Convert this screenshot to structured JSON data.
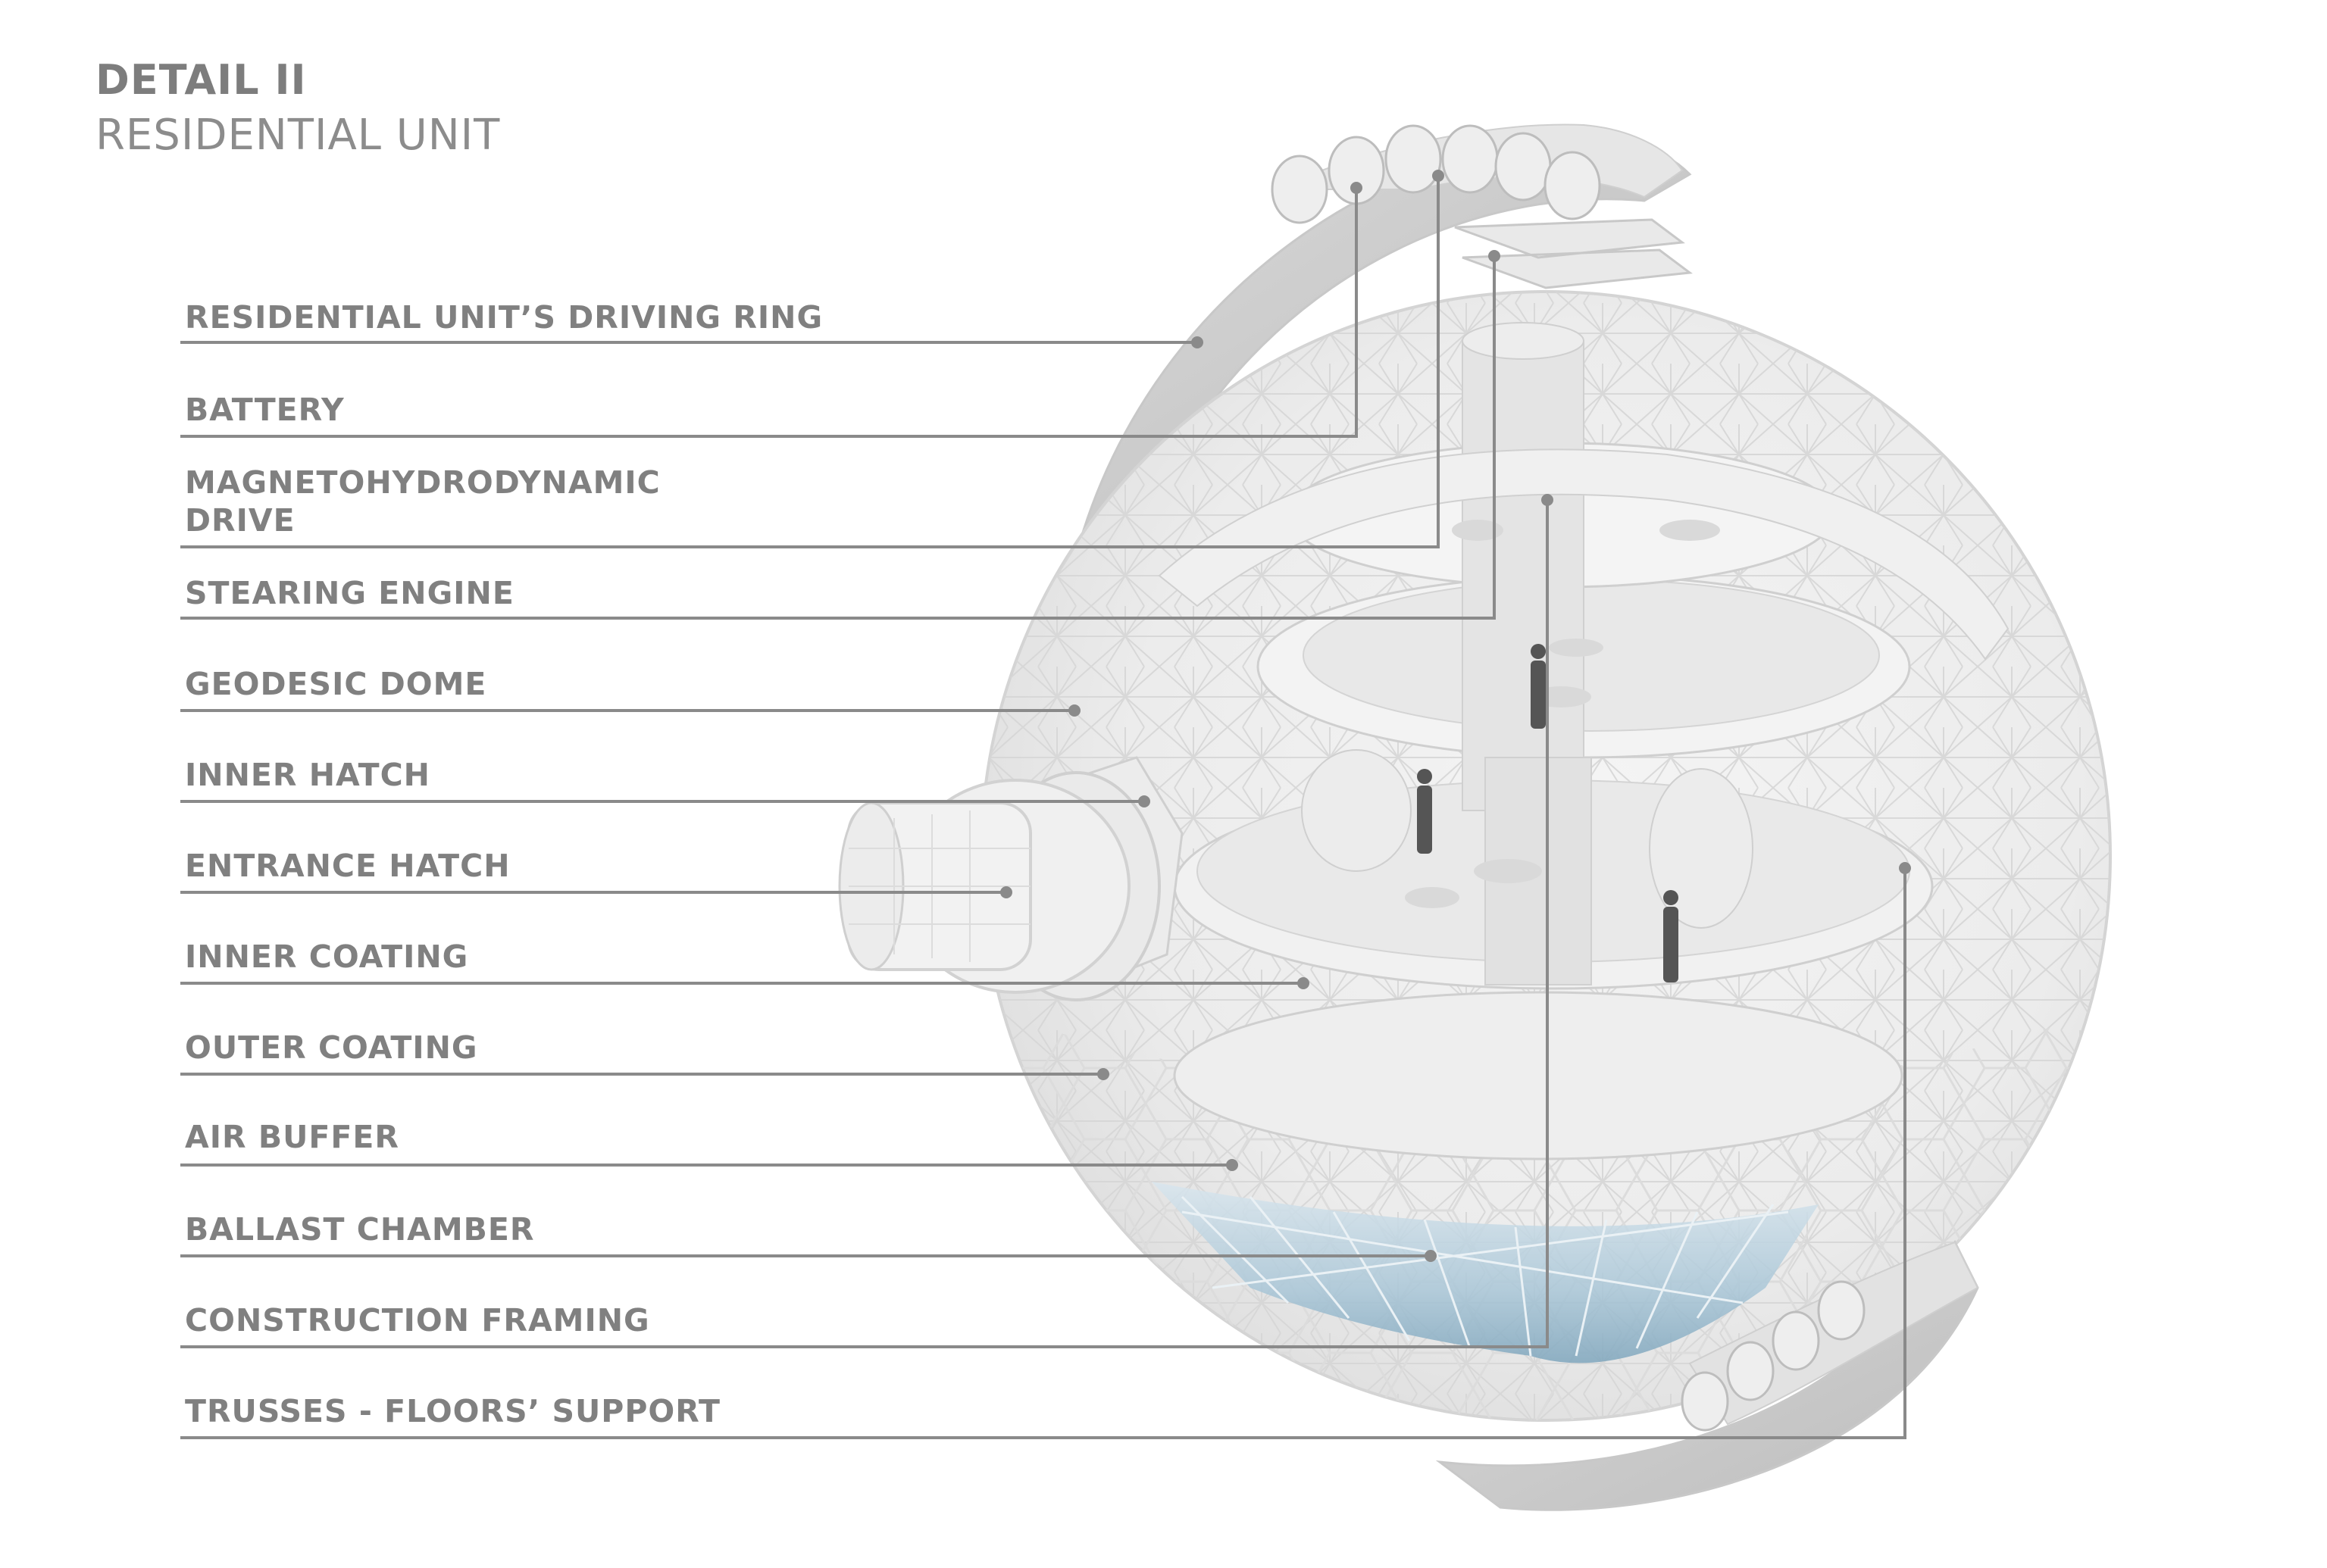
{
  "header": {
    "title": "DETAIL II",
    "subtitle": "RESIDENTIAL UNIT"
  },
  "labels": [
    {
      "id": "driving-ring",
      "lines": [
        "RESIDENTIAL UNIT’S DRIVING RING"
      ]
    },
    {
      "id": "battery",
      "lines": [
        "BATTERY"
      ]
    },
    {
      "id": "mhd-drive",
      "lines": [
        "MAGNETOHYDRODYNAMIC",
        "DRIVE"
      ]
    },
    {
      "id": "stearing-engine",
      "lines": [
        "STEARING ENGINE"
      ]
    },
    {
      "id": "geodesic-dome",
      "lines": [
        "GEODESIC DOME"
      ]
    },
    {
      "id": "inner-hatch",
      "lines": [
        "INNER HATCH"
      ]
    },
    {
      "id": "entrance-hatch",
      "lines": [
        "ENTRANCE HATCH"
      ]
    },
    {
      "id": "inner-coating",
      "lines": [
        "INNER COATING"
      ]
    },
    {
      "id": "outer-coating",
      "lines": [
        "OUTER COATING"
      ]
    },
    {
      "id": "air-buffer",
      "lines": [
        "AIR BUFFER"
      ]
    },
    {
      "id": "ballast-chamber",
      "lines": [
        "BALLAST CHAMBER"
      ]
    },
    {
      "id": "construction-framing",
      "lines": [
        "CONSTRUCTION FRAMING"
      ]
    },
    {
      "id": "trusses",
      "lines": [
        "TRUSSES - FLOORS’ SUPPORT"
      ]
    }
  ],
  "colors": {
    "text": "#808080",
    "leader": "#8a8a8a",
    "structure": "#d2d2d2",
    "water": "#8fb4c9"
  }
}
